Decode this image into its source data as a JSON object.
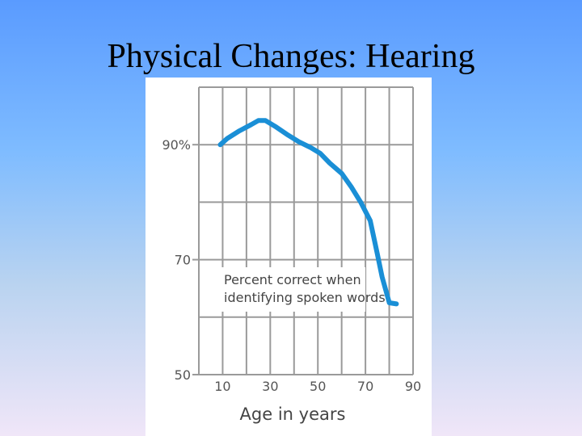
{
  "slide": {
    "title": "Physical Changes: Hearing"
  },
  "chart_data": {
    "type": "line",
    "title": "",
    "xlabel": "Age in years",
    "ylabel": "",
    "annotation": [
      "Percent correct when",
      "identifying spoken words"
    ],
    "x_tick_labels": [
      "10",
      "30",
      "50",
      "70",
      "90"
    ],
    "y_tick_labels": [
      "90%",
      "70",
      "50"
    ],
    "x_ticks": [
      10,
      30,
      50,
      70,
      90
    ],
    "y_ticks": [
      90,
      70,
      50
    ],
    "xlim": [
      0,
      90
    ],
    "ylim": [
      50,
      100
    ],
    "grid": true,
    "series": [
      {
        "name": "",
        "color": "#1a8fd6",
        "x": [
          9,
          12,
          17,
          22,
          25,
          28,
          32,
          37,
          42,
          47,
          51,
          55,
          60,
          64,
          68,
          72,
          75,
          77,
          80,
          83
        ],
        "y": [
          90.0,
          91.1,
          92.4,
          93.5,
          94.2,
          94.2,
          93.2,
          91.8,
          90.5,
          89.5,
          88.5,
          86.8,
          85.0,
          82.7,
          80.0,
          76.8,
          71.0,
          67.0,
          62.5,
          62.3
        ]
      }
    ]
  }
}
